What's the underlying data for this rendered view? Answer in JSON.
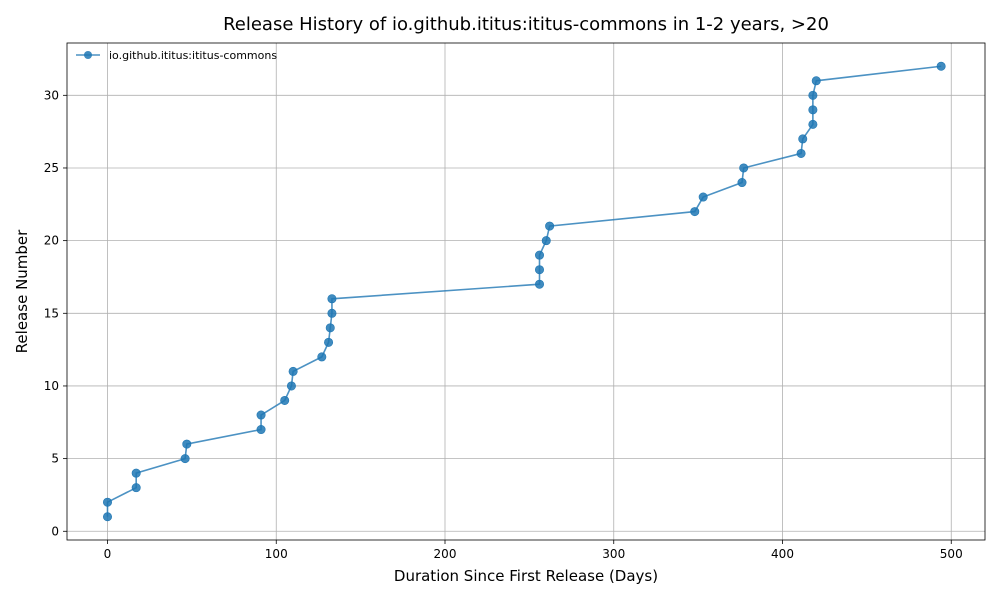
{
  "chart_data": {
    "type": "line",
    "title": "Release History of io.github.ititus:ititus-commons in 1-2 years, >20",
    "xlabel": "Duration Since First Release (Days)",
    "ylabel": "Release Number",
    "xlim": [
      -24,
      520
    ],
    "ylim": [
      -0.6,
      33.6
    ],
    "xticks": [
      0,
      100,
      200,
      300,
      400,
      500
    ],
    "yticks": [
      0,
      5,
      10,
      15,
      20,
      25,
      30
    ],
    "grid": true,
    "legend_position": "top-left",
    "series": [
      {
        "name": "io.github.ititus:ititus-commons",
        "color": "#1f77b4",
        "marker": "circle",
        "x": [
          0,
          0,
          17,
          17,
          46,
          47,
          91,
          91,
          105,
          109,
          110,
          127,
          131,
          132,
          133,
          133,
          256,
          256,
          256,
          260,
          262,
          348,
          353,
          376,
          377,
          411,
          412,
          418,
          418,
          418,
          420,
          494
        ],
        "y": [
          1,
          2,
          3,
          4,
          5,
          6,
          7,
          8,
          9,
          10,
          11,
          12,
          13,
          14,
          15,
          16,
          17,
          18,
          19,
          20,
          21,
          22,
          23,
          24,
          25,
          26,
          27,
          28,
          29,
          30,
          31,
          32
        ]
      }
    ]
  }
}
